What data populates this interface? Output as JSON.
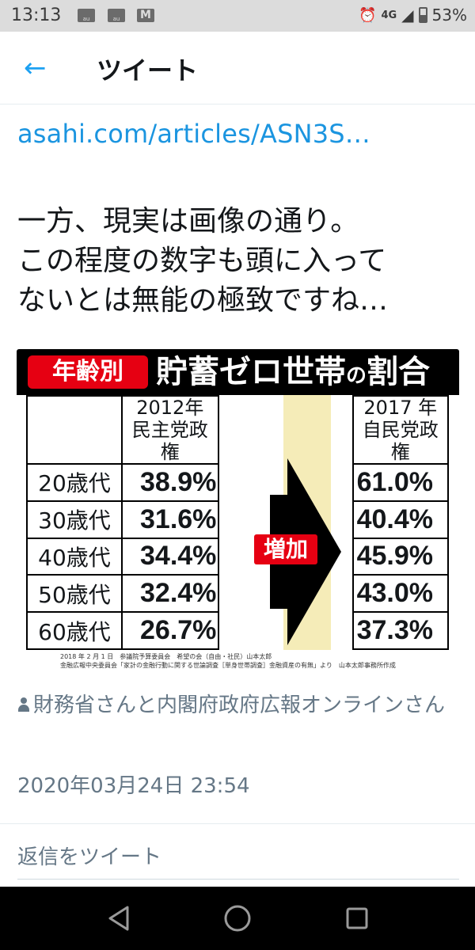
{
  "status_bar": {
    "time": "13:13",
    "notifications": [
      "au",
      "au",
      "M"
    ],
    "network": "4G",
    "battery": "53%"
  },
  "header": {
    "back_icon": "arrow-left-icon",
    "title": "ツイート"
  },
  "tweet": {
    "link": "asahi.com/articles/ASN3S…",
    "text_lines": [
      "一方、現実は画像の通り。",
      "この程度の数字も頭に入って",
      "ないとは無能の極致ですね…"
    ],
    "image": {
      "tag": "年齢別",
      "title_a": "貯蓄ゼロ世帯",
      "title_b": "の",
      "title_c": "割合",
      "col_left_year": "2012年",
      "col_left_gov": "民主党政権",
      "col_right_year": "2017 年",
      "col_right_gov": "自民党政権",
      "increase_label": "増加",
      "rows": [
        {
          "age": "20歳代",
          "y2012": "38.9%",
          "y2017": "61.0%"
        },
        {
          "age": "30歳代",
          "y2012": "31.6%",
          "y2017": "40.4%"
        },
        {
          "age": "40歳代",
          "y2012": "34.4%",
          "y2017": "45.9%"
        },
        {
          "age": "50歳代",
          "y2012": "32.4%",
          "y2017": "43.0%"
        },
        {
          "age": "60歳代",
          "y2012": "26.7%",
          "y2017": "37.3%"
        }
      ],
      "source_line1": "2018 年 2 月 1 日　参議院予算委員会　希望の会（自由・社民）山本太郎",
      "source_line2": "金融広報中央委員会「家計の金融行動に関する世論調査［単身世帯調査］金融資産の有無」より　山本太郎事務所作成"
    },
    "tagged_users": "財務省さんと内閣府政府広報オンラインさん",
    "timestamp": "2020年03月24日 23:54",
    "reply_placeholder": "返信をツイート"
  },
  "nav_bar": {
    "buttons": [
      "back-triangle-icon",
      "home-circle-icon",
      "recents-square-icon"
    ]
  },
  "colors": {
    "accent": "#1da1f2",
    "link": "#1b95e0",
    "muted": "#657786",
    "red": "#e60012"
  }
}
